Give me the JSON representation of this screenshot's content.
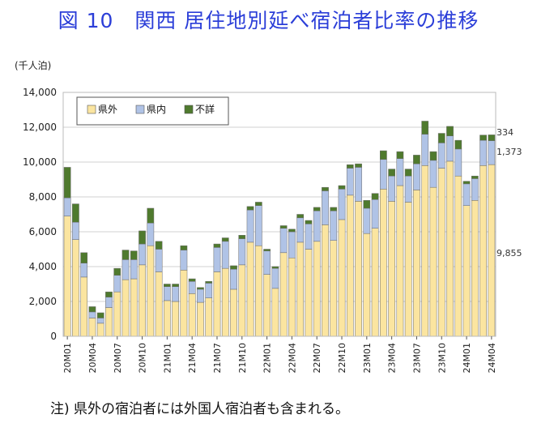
{
  "chart_data": {
    "type": "bar",
    "stacked": true,
    "title": "図 10　関西 居住地別延べ宿泊者比率の推移",
    "ylabel": "(千人泊)",
    "ylim": [
      0,
      14000
    ],
    "yticks": [
      0,
      2000,
      4000,
      6000,
      8000,
      10000,
      12000,
      14000
    ],
    "ytick_labels": [
      "0",
      "2,000",
      "4,000",
      "6,000",
      "8,000",
      "10,000",
      "12,000",
      "14,000"
    ],
    "grid": true,
    "legend_position": "top-left",
    "categories": [
      "20M01",
      "20M02",
      "20M03",
      "20M04",
      "20M05",
      "20M06",
      "20M07",
      "20M08",
      "20M09",
      "20M10",
      "20M11",
      "20M12",
      "21M01",
      "21M02",
      "21M03",
      "21M04",
      "21M05",
      "21M06",
      "21M07",
      "21M08",
      "21M09",
      "21M10",
      "21M11",
      "21M12",
      "22M01",
      "22M02",
      "22M03",
      "22M04",
      "22M05",
      "22M06",
      "22M07",
      "22M08",
      "22M09",
      "22M10",
      "22M11",
      "22M12",
      "23M01",
      "23M02",
      "23M03",
      "23M04",
      "23M05",
      "23M06",
      "23M07",
      "23M08",
      "23M09",
      "23M10",
      "23M11",
      "23M12",
      "24M01",
      "24M02",
      "24M03",
      "24M04"
    ],
    "x_tick_labels": [
      "20M01",
      "20M04",
      "20M07",
      "20M10",
      "21M01",
      "21M04",
      "21M07",
      "21M10",
      "22M01",
      "22M04",
      "22M07",
      "22M10",
      "23M01",
      "23M04",
      "23M07",
      "23M10",
      "24M01",
      "24M04"
    ],
    "series": [
      {
        "name": "県外",
        "color": "#fbe5a0",
        "values": [
          6900,
          5550,
          3400,
          1050,
          750,
          1650,
          2550,
          3250,
          3300,
          4100,
          5200,
          3700,
          2050,
          2000,
          3800,
          2450,
          1950,
          2200,
          3700,
          3900,
          2700,
          4100,
          5400,
          5200,
          3550,
          2750,
          4800,
          4500,
          5400,
          5000,
          5450,
          6400,
          5500,
          6700,
          8100,
          7750,
          5900,
          6200,
          8450,
          7750,
          8650,
          7700,
          8400,
          9800,
          8550,
          9650,
          10050,
          9200,
          7500,
          7800,
          9800,
          9855
        ]
      },
      {
        "name": "県内",
        "color": "#b0c3e6",
        "values": [
          1050,
          1000,
          800,
          350,
          300,
          600,
          950,
          1150,
          1100,
          1200,
          1300,
          1300,
          800,
          850,
          1150,
          700,
          750,
          850,
          1400,
          1550,
          1150,
          1500,
          1850,
          2300,
          1350,
          1150,
          1400,
          1500,
          1400,
          1450,
          1750,
          1950,
          1700,
          1750,
          1550,
          1950,
          1450,
          1650,
          1700,
          1450,
          1550,
          1500,
          1500,
          1800,
          1550,
          1450,
          1450,
          1550,
          1250,
          1250,
          1450,
          1373
        ]
      },
      {
        "name": "不詳",
        "color": "#4f7a2e",
        "values": [
          1750,
          1050,
          600,
          300,
          300,
          300,
          400,
          550,
          500,
          750,
          850,
          450,
          150,
          150,
          250,
          150,
          100,
          100,
          200,
          200,
          200,
          200,
          200,
          200,
          100,
          100,
          150,
          150,
          200,
          200,
          200,
          200,
          200,
          200,
          200,
          200,
          450,
          350,
          500,
          400,
          400,
          400,
          500,
          750,
          500,
          550,
          550,
          500,
          150,
          150,
          300,
          334
        ]
      }
    ],
    "data_labels": [
      "334",
      "1,373",
      "9,855"
    ]
  },
  "header": {
    "title": "図 10　関西 居住地別延べ宿泊者比率の推移"
  },
  "unit": "(千人泊)",
  "footnote": "注) 県外の宿泊者には外国人宿泊者も含まれる。"
}
